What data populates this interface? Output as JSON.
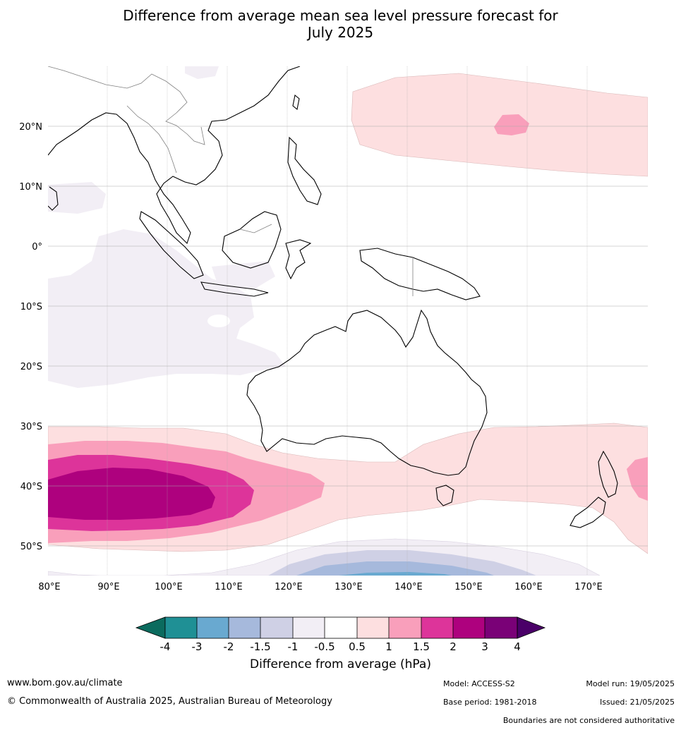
{
  "title_line1": "Difference from average mean sea level pressure forecast for",
  "title_line2": "July 2025",
  "longitude_labels": [
    "80°E",
    "90°E",
    "100°E",
    "110°E",
    "120°E",
    "130°E",
    "140°E",
    "150°E",
    "160°E",
    "170°E"
  ],
  "latitude_labels": [
    "20°N",
    "10°N",
    "0°",
    "10°S",
    "20°S",
    "30°S",
    "40°S",
    "50°S"
  ],
  "colorbar": {
    "title": "Difference from average (hPa)",
    "ticks": [
      "-4",
      "-3",
      "-2",
      "-1.5",
      "-1",
      "-0.5",
      "0.5",
      "1",
      "1.5",
      "2",
      "3",
      "4"
    ],
    "colors": {
      "below_min": "#0b6b5e",
      "m4_m3": "#1f9095",
      "m3_m2": "#69a9d0",
      "m2_m15": "#a6b9dc",
      "m15_m1": "#cfd0e5",
      "m1_m05": "#f2eef5",
      "m05_05": "#ffffff",
      "p05_1": "#fddfe0",
      "p1_15": "#f99fbb",
      "p15_2": "#dd349a",
      "p2_3": "#ae017e",
      "p3_4": "#7a0177",
      "above_max": "#4a0068"
    }
  },
  "footer": {
    "website": "www.bom.gov.au/climate",
    "copyright": "© Commonwealth of Australia 2025, Australian Bureau of Meteorology",
    "model": "Model: ACCESS-S2",
    "model_run": "Model run: 19/05/2025",
    "base_period": "Base period: 1981-2018",
    "issued": "Issued: 21/05/2025",
    "disclaimer": "Boundaries are not considered authoritative"
  }
}
